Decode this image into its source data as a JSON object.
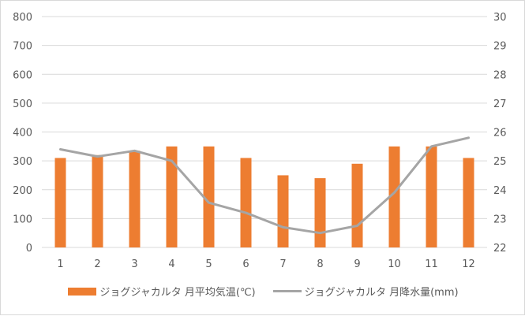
{
  "chart_data": {
    "type": "bar",
    "title": "",
    "xlabel": "",
    "ylabel": "",
    "categories": [
      "1",
      "2",
      "3",
      "4",
      "5",
      "6",
      "7",
      "8",
      "9",
      "10",
      "11",
      "12"
    ],
    "series": [
      {
        "name": "ジョグジャカルタ 月平均気温(℃)",
        "type": "bar",
        "axis": "left",
        "color": "#ed7d31",
        "values": [
          310,
          320,
          335,
          350,
          350,
          310,
          250,
          240,
          290,
          350,
          350,
          310
        ]
      },
      {
        "name": "ジョグジャカルタ 月降水量(mm)",
        "type": "line",
        "axis": "right",
        "color": "#a5a5a5",
        "values": [
          25.4,
          25.15,
          25.35,
          25.0,
          23.55,
          23.2,
          22.7,
          22.5,
          22.75,
          23.9,
          25.5,
          25.8
        ]
      }
    ],
    "ylim": [
      0,
      800
    ],
    "y_ticks": [
      "0",
      "100",
      "200",
      "300",
      "400",
      "500",
      "600",
      "700",
      "800"
    ],
    "y2lim": [
      22,
      30
    ],
    "y2_ticks": [
      "22",
      "23",
      "24",
      "25",
      "26",
      "27",
      "28",
      "29",
      "30"
    ],
    "grid": true,
    "legend_position": "bottom"
  },
  "legend": {
    "bar_label": "ジョグジャカルタ 月平均気温(℃)",
    "line_label": "ジョグジャカルタ 月降水量(mm)"
  }
}
